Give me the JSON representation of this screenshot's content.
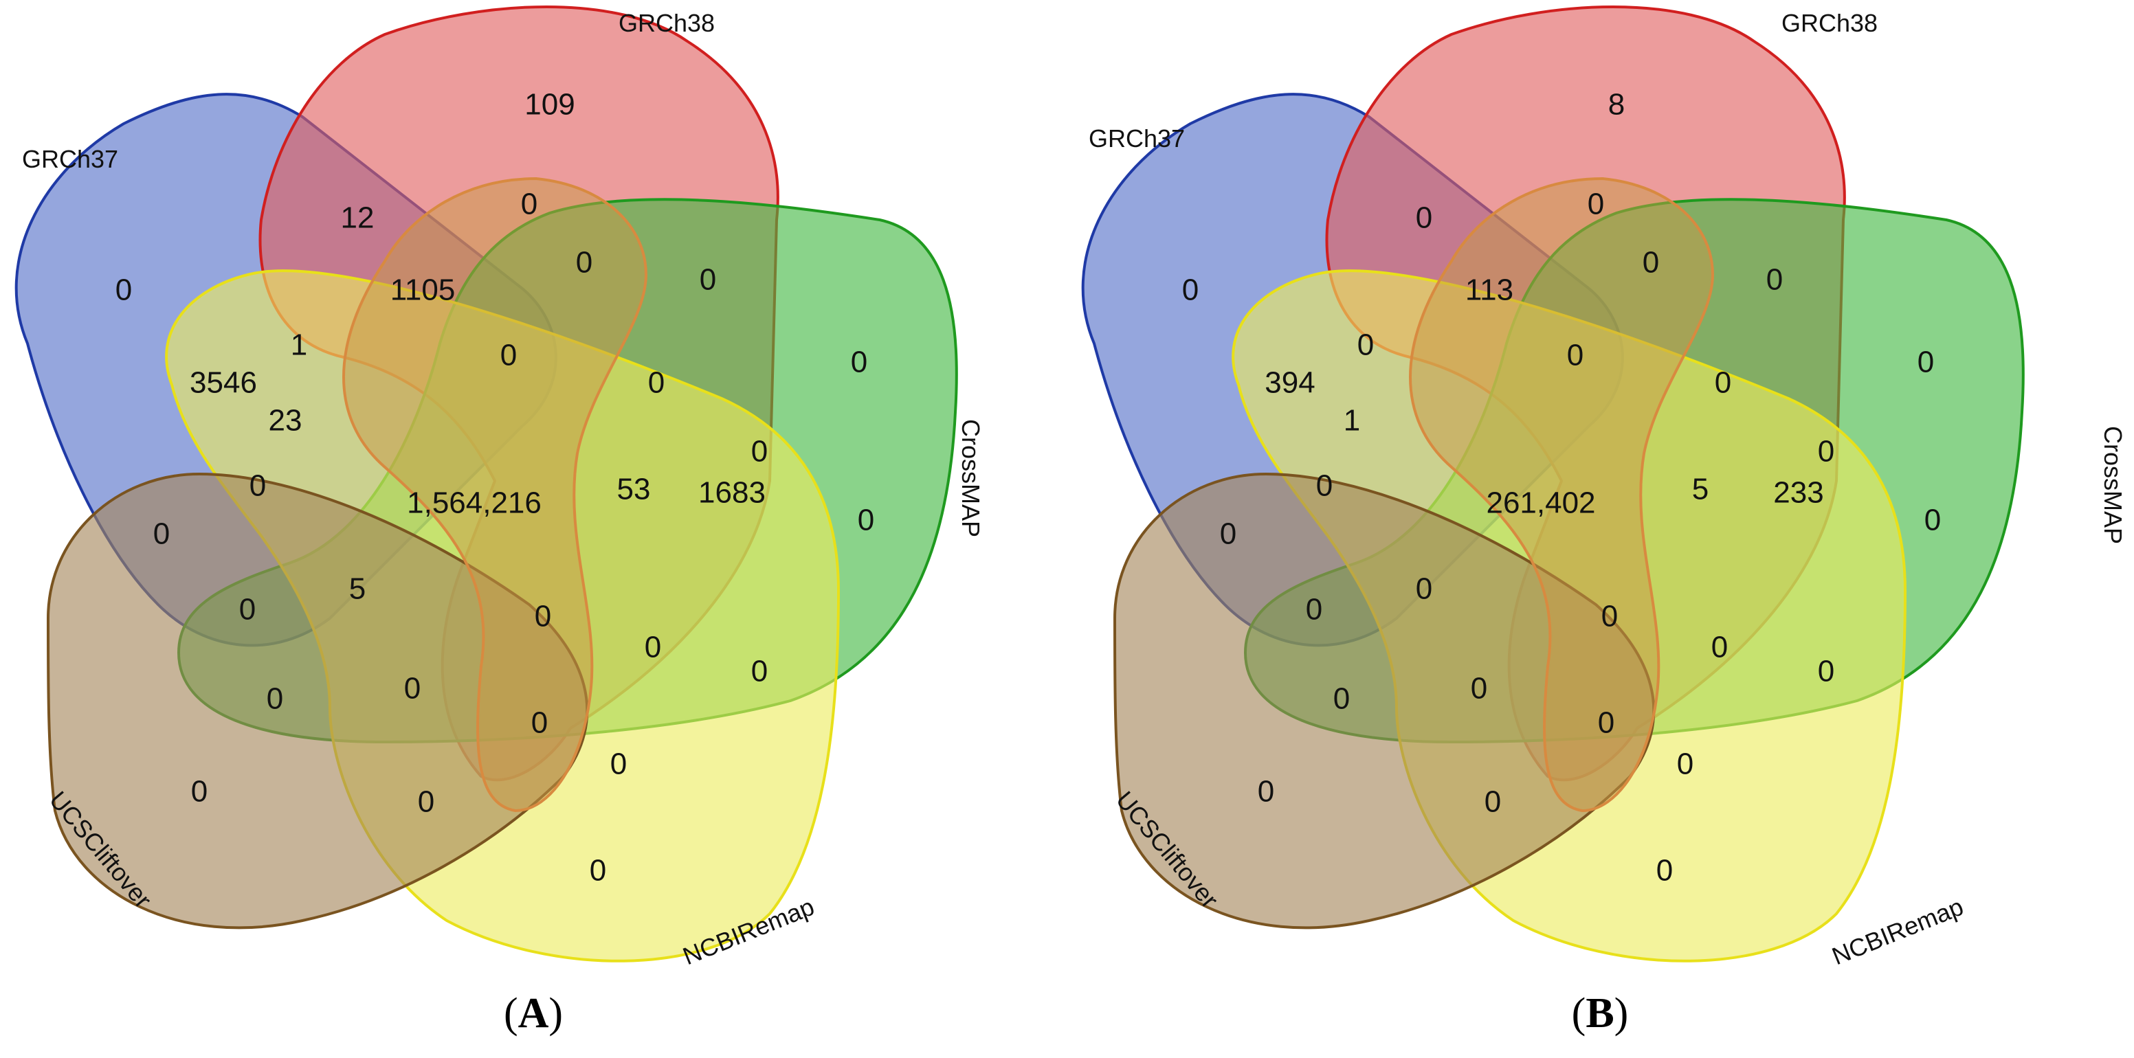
{
  "colors": {
    "GRCh37": {
      "fill": "#5470c8",
      "stroke": "#1f3aa6"
    },
    "GRCh38": {
      "fill": "#e06060",
      "stroke": "#d11f1f"
    },
    "CrossMAP": {
      "fill": "#42b842",
      "stroke": "#1f9a1f"
    },
    "NCBIRemap": {
      "fill": "#ecec60",
      "stroke": "#e8e01a"
    },
    "UCSCliftover": {
      "fill": "#a4865a",
      "stroke": "#7a5420"
    },
    "center_core": "#c89a48",
    "center_ring": "#d88a40"
  },
  "set_labels": {
    "GRCh37": "GRCh37",
    "GRCh38": "GRCh38",
    "CrossMAP": "CrossMAP",
    "NCBIRemap": "NCBIRemap",
    "UCSCliftover": "UCSCliftover"
  },
  "panels": [
    {
      "id": "A",
      "label_open": "(",
      "label_letter": "A",
      "label_close": ")",
      "counts": [
        "109",
        "0",
        "0",
        "0",
        "0",
        "12",
        "1105",
        "0",
        "0",
        "0",
        "1",
        "3546",
        "23",
        "0",
        "1683",
        "0",
        "0",
        "1,564,216",
        "53",
        "0",
        "0",
        "5",
        "0",
        "0",
        "0",
        "0",
        "0",
        "0",
        "0",
        "0",
        "0",
        "0"
      ]
    },
    {
      "id": "B",
      "label_open": "(",
      "label_letter": "B",
      "label_close": ")",
      "counts": [
        "8",
        "0",
        "0",
        "0",
        "0",
        "0",
        "113",
        "0",
        "0",
        "0",
        "0",
        "394",
        "1",
        "0",
        "233",
        "0",
        "0",
        "261,402",
        "5",
        "0",
        "0",
        "0",
        "0",
        "0",
        "0",
        "0",
        "0",
        "0",
        "0",
        "0",
        "0",
        "0"
      ]
    }
  ]
}
